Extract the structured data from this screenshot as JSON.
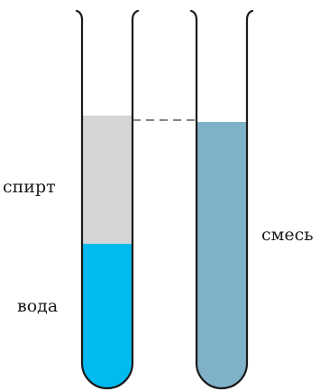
{
  "labels": {
    "alcohol": "спирт",
    "water": "вода",
    "mixture": "смесь"
  },
  "colors": {
    "alcohol": "#d4d5d7",
    "water": "#00baf0",
    "mixture": "#7fb2c9",
    "glass_outline": "#1a1a1a",
    "level_line": "#3a3a3a"
  },
  "tubes": [
    {
      "name": "left-tube",
      "layers": [
        "alcohol",
        "water"
      ]
    },
    {
      "name": "right-tube",
      "layers": [
        "mixture"
      ]
    }
  ]
}
